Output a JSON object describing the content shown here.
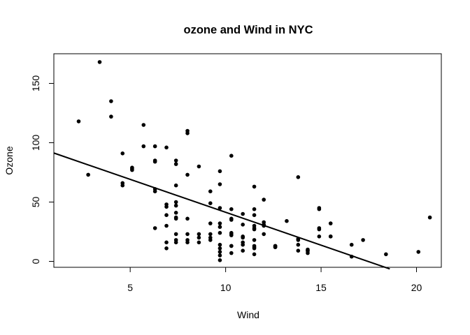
{
  "chart_data": {
    "type": "scatter",
    "title": "ozone and Wind in NYC",
    "xlabel": "Wind",
    "ylabel": "Ozone",
    "xlim": [
      1,
      21.3
    ],
    "ylim": [
      -5,
      175
    ],
    "xticks": [
      5,
      10,
      15,
      20
    ],
    "yticks": [
      0,
      50,
      100,
      150
    ],
    "grid": false,
    "legend": "none",
    "point_color": "#000000",
    "trend_line": {
      "type": "linear-fit",
      "intercept": 96.87,
      "slope": -5.55,
      "x_from": 1,
      "x_to": 18.6
    },
    "points": [
      {
        "x": 7.4,
        "y": 41
      },
      {
        "x": 8.0,
        "y": 36
      },
      {
        "x": 12.6,
        "y": 12
      },
      {
        "x": 11.5,
        "y": 18
      },
      {
        "x": 8.6,
        "y": 23
      },
      {
        "x": 13.8,
        "y": 19
      },
      {
        "x": 20.1,
        "y": 8
      },
      {
        "x": 8.6,
        "y": 16
      },
      {
        "x": 6.9,
        "y": 11
      },
      {
        "x": 9.7,
        "y": 14
      },
      {
        "x": 9.2,
        "y": 18
      },
      {
        "x": 10.9,
        "y": 14
      },
      {
        "x": 13.2,
        "y": 34
      },
      {
        "x": 11.5,
        "y": 6
      },
      {
        "x": 12.0,
        "y": 30
      },
      {
        "x": 18.4,
        "y": 6
      },
      {
        "x": 11.5,
        "y": 11
      },
      {
        "x": 9.7,
        "y": 1
      },
      {
        "x": 9.7,
        "y": 11
      },
      {
        "x": 16.6,
        "y": 4
      },
      {
        "x": 9.7,
        "y": 32
      },
      {
        "x": 12.0,
        "y": 23
      },
      {
        "x": 14.9,
        "y": 45
      },
      {
        "x": 5.7,
        "y": 115
      },
      {
        "x": 7.4,
        "y": 37
      },
      {
        "x": 9.7,
        "y": 29
      },
      {
        "x": 13.8,
        "y": 71
      },
      {
        "x": 11.5,
        "y": 39
      },
      {
        "x": 8.0,
        "y": 23
      },
      {
        "x": 14.9,
        "y": 21
      },
      {
        "x": 20.7,
        "y": 37
      },
      {
        "x": 9.2,
        "y": 20
      },
      {
        "x": 11.5,
        "y": 12
      },
      {
        "x": 10.3,
        "y": 13
      },
      {
        "x": 4.0,
        "y": 135
      },
      {
        "x": 9.2,
        "y": 49
      },
      {
        "x": 9.2,
        "y": 32
      },
      {
        "x": 4.6,
        "y": 64
      },
      {
        "x": 10.9,
        "y": 40
      },
      {
        "x": 5.1,
        "y": 77
      },
      {
        "x": 6.3,
        "y": 97
      },
      {
        "x": 5.7,
        "y": 97
      },
      {
        "x": 7.4,
        "y": 85
      },
      {
        "x": 14.3,
        "y": 10
      },
      {
        "x": 14.9,
        "y": 27
      },
      {
        "x": 14.3,
        "y": 7
      },
      {
        "x": 6.9,
        "y": 48
      },
      {
        "x": 10.3,
        "y": 35
      },
      {
        "x": 6.3,
        "y": 61
      },
      {
        "x": 5.1,
        "y": 79
      },
      {
        "x": 11.5,
        "y": 63
      },
      {
        "x": 6.9,
        "y": 16
      },
      {
        "x": 8.6,
        "y": 80
      },
      {
        "x": 8.0,
        "y": 108
      },
      {
        "x": 8.6,
        "y": 20
      },
      {
        "x": 12.0,
        "y": 52
      },
      {
        "x": 7.4,
        "y": 82
      },
      {
        "x": 7.4,
        "y": 50
      },
      {
        "x": 7.4,
        "y": 64
      },
      {
        "x": 9.2,
        "y": 59
      },
      {
        "x": 6.9,
        "y": 39
      },
      {
        "x": 13.8,
        "y": 9
      },
      {
        "x": 7.4,
        "y": 16
      },
      {
        "x": 4.0,
        "y": 122
      },
      {
        "x": 10.3,
        "y": 89
      },
      {
        "x": 8.0,
        "y": 110
      },
      {
        "x": 11.5,
        "y": 44
      },
      {
        "x": 11.5,
        "y": 28
      },
      {
        "x": 9.7,
        "y": 65
      },
      {
        "x": 10.3,
        "y": 22
      },
      {
        "x": 6.3,
        "y": 59
      },
      {
        "x": 7.4,
        "y": 23
      },
      {
        "x": 10.9,
        "y": 31
      },
      {
        "x": 10.3,
        "y": 44
      },
      {
        "x": 15.5,
        "y": 21
      },
      {
        "x": 14.3,
        "y": 9
      },
      {
        "x": 12.6,
        "y": 13
      },
      {
        "x": 9.7,
        "y": 45
      },
      {
        "x": 3.4,
        "y": 168
      },
      {
        "x": 8.0,
        "y": 73
      },
      {
        "x": 9.7,
        "y": 76
      },
      {
        "x": 2.3,
        "y": 118
      },
      {
        "x": 6.3,
        "y": 84
      },
      {
        "x": 6.3,
        "y": 85
      },
      {
        "x": 6.9,
        "y": 96
      },
      {
        "x": 5.1,
        "y": 78
      },
      {
        "x": 2.8,
        "y": 73
      },
      {
        "x": 4.6,
        "y": 91
      },
      {
        "x": 7.4,
        "y": 47
      },
      {
        "x": 15.5,
        "y": 32
      },
      {
        "x": 10.9,
        "y": 20
      },
      {
        "x": 10.3,
        "y": 23
      },
      {
        "x": 10.9,
        "y": 21
      },
      {
        "x": 9.7,
        "y": 24
      },
      {
        "x": 14.9,
        "y": 44
      },
      {
        "x": 15.5,
        "y": 21
      },
      {
        "x": 6.3,
        "y": 28
      },
      {
        "x": 10.9,
        "y": 9
      },
      {
        "x": 11.5,
        "y": 13
      },
      {
        "x": 6.9,
        "y": 46
      },
      {
        "x": 13.8,
        "y": 18
      },
      {
        "x": 10.3,
        "y": 13
      },
      {
        "x": 10.3,
        "y": 24
      },
      {
        "x": 8.0,
        "y": 16
      },
      {
        "x": 12.6,
        "y": 13
      },
      {
        "x": 9.2,
        "y": 23
      },
      {
        "x": 10.3,
        "y": 36
      },
      {
        "x": 10.3,
        "y": 7
      },
      {
        "x": 16.6,
        "y": 14
      },
      {
        "x": 6.9,
        "y": 30
      },
      {
        "x": 13.8,
        "y": 14
      },
      {
        "x": 7.4,
        "y": 18
      },
      {
        "x": 4.6,
        "y": 66
      },
      {
        "x": 8.0,
        "y": 18
      },
      {
        "x": 11.5,
        "y": 30
      },
      {
        "x": 12.0,
        "y": 33
      },
      {
        "x": 7.4,
        "y": 36
      },
      {
        "x": 9.7,
        "y": 8
      },
      {
        "x": 14.3,
        "y": 9
      },
      {
        "x": 14.9,
        "y": 28
      },
      {
        "x": 9.7,
        "y": 5
      },
      {
        "x": 11.5,
        "y": 27
      },
      {
        "x": 12.0,
        "y": 31
      },
      {
        "x": 10.9,
        "y": 16
      },
      {
        "x": 12.6,
        "y": 12
      },
      {
        "x": 17.2,
        "y": 18
      }
    ]
  }
}
